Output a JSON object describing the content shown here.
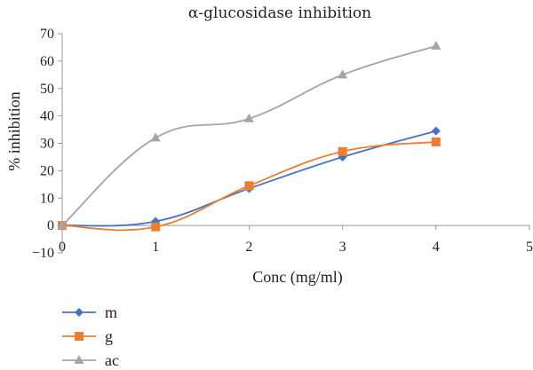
{
  "chart_data": {
    "type": "line",
    "title": "α-glucosidase inhibition",
    "xlabel": "Conc (mg/ml)",
    "ylabel": "% inhibition",
    "xlim": [
      0,
      5
    ],
    "ylim": [
      -10,
      70
    ],
    "xticks": [
      "0",
      "1",
      "2",
      "3",
      "4",
      "5"
    ],
    "yticks": [
      "−10",
      "0",
      "10",
      "20",
      "30",
      "40",
      "50",
      "60",
      "70"
    ],
    "grid": false,
    "legend_position": "bottom-left",
    "series": [
      {
        "name": "m",
        "color": "#4472c4",
        "marker": "diamond",
        "x": [
          0,
          1,
          2,
          3,
          4
        ],
        "y": [
          0,
          1.5,
          13.5,
          25,
          34.5
        ]
      },
      {
        "name": "g",
        "color": "#ed7d31",
        "marker": "square",
        "x": [
          0,
          1,
          2,
          3,
          4
        ],
        "y": [
          0,
          -0.5,
          14.5,
          27,
          30.5
        ]
      },
      {
        "name": "ac",
        "color": "#a5a5a5",
        "marker": "triangle",
        "x": [
          0,
          1,
          2,
          3,
          4
        ],
        "y": [
          0,
          32,
          39,
          55,
          65.5
        ]
      }
    ]
  }
}
